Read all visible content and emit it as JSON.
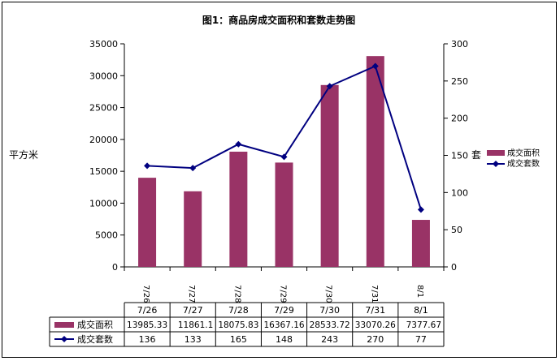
{
  "chart_data": {
    "type": "bar+line",
    "title": "图1：商品房成交面积和套数走势图",
    "categories": [
      "7/26",
      "7/27",
      "7/28",
      "7/29",
      "7/30",
      "7/31",
      "8/1"
    ],
    "table_categories": [
      "7/26",
      "7/27",
      "7/28",
      "7/29",
      "7/30",
      "7/31",
      "8/1"
    ],
    "axis_tick_labels": [
      "7/26",
      "7/27",
      "7/28",
      "7/29",
      "7/30",
      "7/31",
      "8/1"
    ],
    "y_left_label": "平方米",
    "y_right_label": "套",
    "y_left_lim": [
      0,
      35000
    ],
    "y_left_ticks": [
      0,
      5000,
      10000,
      15000,
      20000,
      25000,
      30000,
      35000
    ],
    "y_right_lim": [
      0,
      300
    ],
    "y_right_ticks": [
      0,
      50,
      100,
      150,
      200,
      250,
      300
    ],
    "grid": false,
    "legend_position": "right",
    "series": [
      {
        "name": "成交面积",
        "kind": "bar",
        "axis": "left",
        "color": "#993366",
        "values": [
          13985.33,
          11861.1,
          18075.83,
          16367.16,
          28533.72,
          33070.26,
          7377.67
        ],
        "table_labels": [
          "13985.33",
          "11861.1",
          "18075.83",
          "16367.16",
          "28533.72",
          "33070.26",
          "7377.67"
        ]
      },
      {
        "name": "成交套数",
        "kind": "line",
        "axis": "right",
        "color": "#000080",
        "values": [
          136,
          133,
          165,
          148,
          243,
          270,
          77
        ],
        "table_labels": [
          "136",
          "133",
          "165",
          "148",
          "243",
          "270",
          "77"
        ]
      }
    ]
  }
}
